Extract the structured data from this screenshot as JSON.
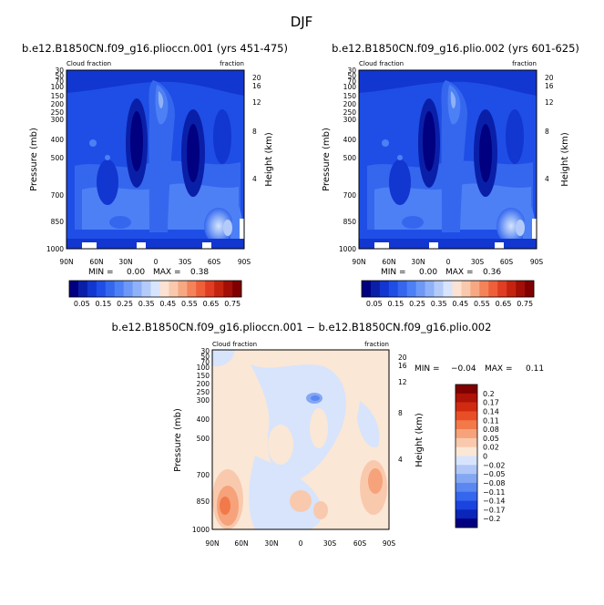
{
  "figure": {
    "title": "DJF"
  },
  "colors": {
    "blues": [
      "#000080",
      "#0a1fa8",
      "#1236d0",
      "#1f4ee6",
      "#3567ee",
      "#4d80f5",
      "#6d98f7",
      "#8fb1f8",
      "#b4cbfa",
      "#d7e4fc"
    ],
    "warm": [
      "#fbe2d2",
      "#f9c9ad",
      "#f7a882",
      "#f4835a",
      "#ee5f3a",
      "#e03d22",
      "#c4240f",
      "#a30e06",
      "#800000"
    ],
    "diff": [
      "#000080",
      "#0a25b8",
      "#1a44dd",
      "#3567ee",
      "#5a88f0",
      "#84a7f4",
      "#b0c7f7",
      "#d7e4fc",
      "#fbe7d6",
      "#f9c9ad",
      "#f6a27a",
      "#f2794a",
      "#e94f26",
      "#d02b10",
      "#ad1306",
      "#800000"
    ]
  },
  "chart_data": [
    {
      "type": "contour",
      "title": "b.e12.B1850CN.f09_g16.plioccn.001 (yrs 451-475)",
      "left_label": "Cloud fraction",
      "right_label": "fraction",
      "xlabel": "",
      "ylabel": "Pressure (mb)",
      "ylabel_right": "Height (km)",
      "x_ticks": [
        "90N",
        "60N",
        "30N",
        "0",
        "30S",
        "60S",
        "90S"
      ],
      "x_values": [
        90,
        60,
        30,
        0,
        -30,
        -60,
        -90
      ],
      "y_ticks": [
        "30",
        "50",
        "70",
        "100",
        "150",
        "200",
        "250",
        "300",
        "400",
        "500",
        "700",
        "850",
        "1000"
      ],
      "y_values": [
        30,
        50,
        70,
        100,
        150,
        200,
        250,
        300,
        400,
        500,
        700,
        850,
        1000
      ],
      "ylim": [
        1000,
        30
      ],
      "height_ticks": [
        "20",
        "16",
        "12",
        "8",
        "4"
      ],
      "height_values": [
        20,
        16,
        12,
        8,
        4
      ],
      "min_label": "MIN =",
      "min": "0.00",
      "max_label": "MAX =",
      "max": "0.38",
      "colorbar_labels": [
        "0.05",
        "0.15",
        "0.25",
        "0.35",
        "0.45",
        "0.55",
        "0.65",
        "0.75"
      ]
    },
    {
      "type": "contour",
      "title": "b.e12.B1850CN.f09_g16.plio.002 (yrs 601-625)",
      "left_label": "Cloud fraction",
      "right_label": "fraction",
      "xlabel": "",
      "ylabel": "Pressure (mb)",
      "ylabel_right": "Height (km)",
      "x_ticks": [
        "90N",
        "60N",
        "30N",
        "0",
        "30S",
        "60S",
        "90S"
      ],
      "x_values": [
        90,
        60,
        30,
        0,
        -30,
        -60,
        -90
      ],
      "y_ticks": [
        "30",
        "50",
        "70",
        "100",
        "150",
        "200",
        "250",
        "300",
        "400",
        "500",
        "700",
        "850",
        "1000"
      ],
      "y_values": [
        30,
        50,
        70,
        100,
        150,
        200,
        250,
        300,
        400,
        500,
        700,
        850,
        1000
      ],
      "ylim": [
        1000,
        30
      ],
      "height_ticks": [
        "20",
        "16",
        "12",
        "8",
        "4"
      ],
      "height_values": [
        20,
        16,
        12,
        8,
        4
      ],
      "min_label": "MIN =",
      "min": "0.00",
      "max_label": "MAX =",
      "max": "0.36",
      "colorbar_labels": [
        "0.05",
        "0.15",
        "0.25",
        "0.35",
        "0.45",
        "0.55",
        "0.65",
        "0.75"
      ]
    },
    {
      "type": "contour",
      "title": "b.e12.B1850CN.f09_g16.plioccn.001 − b.e12.B1850CN.f09_g16.plio.002",
      "left_label": "Cloud fraction",
      "right_label": "fraction",
      "xlabel": "",
      "ylabel": "Pressure (mb)",
      "ylabel_right": "Height (km)",
      "x_ticks": [
        "90N",
        "60N",
        "30N",
        "0",
        "30S",
        "60S",
        "90S"
      ],
      "x_values": [
        90,
        60,
        30,
        0,
        -30,
        -60,
        -90
      ],
      "y_ticks": [
        "30",
        "50",
        "70",
        "100",
        "150",
        "200",
        "250",
        "300",
        "400",
        "500",
        "700",
        "850",
        "1000"
      ],
      "y_values": [
        30,
        50,
        70,
        100,
        150,
        200,
        250,
        300,
        400,
        500,
        700,
        850,
        1000
      ],
      "ylim": [
        1000,
        30
      ],
      "height_ticks": [
        "20",
        "16",
        "12",
        "8",
        "4"
      ],
      "height_values": [
        20,
        16,
        12,
        8,
        4
      ],
      "min_label": "MIN =",
      "min": "−0.04",
      "max_label": "MAX =",
      "max": "0.11",
      "colorbar_labels": [
        "0.2",
        "0.17",
        "0.14",
        "0.11",
        "0.08",
        "0.05",
        "0.02",
        "0",
        "−0.02",
        "−0.05",
        "−0.08",
        "−0.11",
        "−0.14",
        "−0.17",
        "−0.2"
      ]
    }
  ]
}
